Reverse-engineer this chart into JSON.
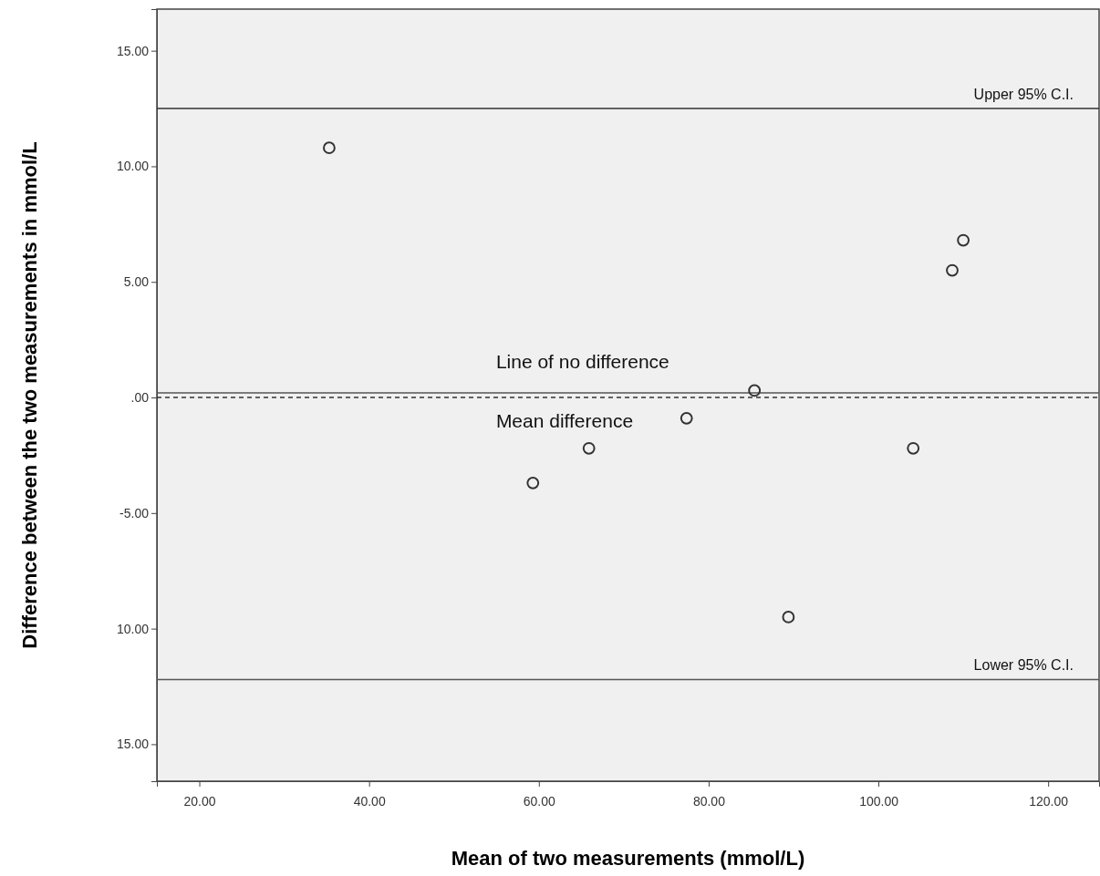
{
  "chart_data": {
    "type": "scatter",
    "xlabel": "Mean of two measurements (mmol/L)",
    "ylabel": "Difference between the two measurements in mmol/L",
    "x": [
      35.3,
      59.3,
      65.9,
      77.4,
      85.4,
      89.4,
      104.1,
      108.7,
      110.0
    ],
    "values": [
      10.8,
      -3.7,
      -2.2,
      -0.9,
      0.3,
      -9.5,
      -2.2,
      5.5,
      6.8
    ],
    "color": "#333333",
    "marker": "circle",
    "xlim": [
      15,
      126
    ],
    "xticks": [
      {
        "value": 20,
        "label": "20.00"
      },
      {
        "value": 40,
        "label": "40.00"
      },
      {
        "value": 60,
        "label": "60.00"
      },
      {
        "value": 80,
        "label": "80.00"
      },
      {
        "value": 100,
        "label": "100.00"
      },
      {
        "value": 120,
        "label": "120.00"
      }
    ],
    "ylim": [
      -16.6,
      16.8
    ],
    "yticks": [
      {
        "value": 15,
        "label": "15.00"
      },
      {
        "value": 10,
        "label": "10.00"
      },
      {
        "value": 5,
        "label": "5.00"
      },
      {
        "value": 0,
        "label": ".00"
      },
      {
        "value": -5,
        "label": "-5.00"
      },
      {
        "value": -10,
        "label": "10.00"
      },
      {
        "value": -15,
        "label": "15.00"
      }
    ],
    "ref_lines": [
      {
        "axis": "y",
        "value": 12.5,
        "label": "Upper 95% C.I.",
        "color": "#333333",
        "line_style": "solid"
      },
      {
        "axis": "y",
        "value": 0,
        "label": "Line of no difference",
        "color": "#333333",
        "line_style": "dashed"
      },
      {
        "axis": "y",
        "value": 0.2,
        "label": "Mean difference",
        "color": "#555555",
        "line_style": "solid"
      },
      {
        "axis": "y",
        "value": -12.2,
        "label": "Lower 95% C.I.",
        "color": "#555555",
        "line_style": "solid"
      }
    ],
    "grid": false
  }
}
